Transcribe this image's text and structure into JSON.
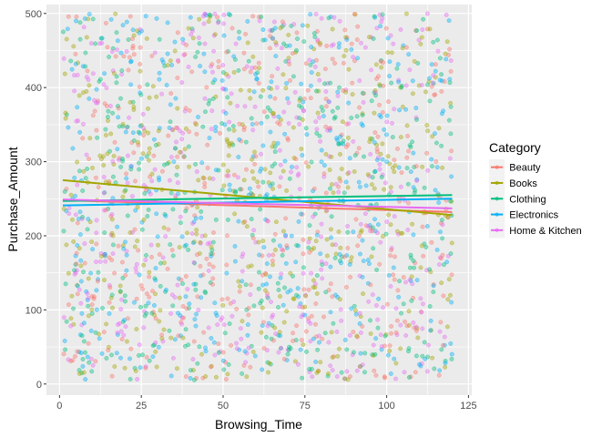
{
  "chart_data": {
    "type": "scatter",
    "xlabel": "Browsing_Time",
    "ylabel": "Purchase_Amount",
    "xlim": [
      -4,
      126
    ],
    "ylim": [
      -15,
      512
    ],
    "x_ticks": [
      0,
      25,
      50,
      75,
      100,
      125
    ],
    "y_ticks": [
      0,
      100,
      200,
      300,
      400,
      500
    ],
    "x_tick_labels": [
      "0",
      "25",
      "50",
      "75",
      "100",
      "125"
    ],
    "y_tick_labels": [
      "0",
      "100",
      "200",
      "300",
      "400",
      "500"
    ],
    "grid": true,
    "legend": {
      "title": "Category",
      "placement": "right",
      "entries": [
        "Beauty",
        "Books",
        "Clothing",
        "Electronics",
        "Home & Kitchen"
      ]
    },
    "series": [
      {
        "name": "Beauty",
        "color": "#F8766D",
        "trend": {
          "x": [
            1,
            120
          ],
          "y": [
            248,
            232
          ]
        }
      },
      {
        "name": "Books",
        "color": "#A3A500",
        "trend": {
          "x": [
            1,
            120
          ],
          "y": [
            275,
            228
          ]
        }
      },
      {
        "name": "Clothing",
        "color": "#00BF7D",
        "trend": {
          "x": [
            1,
            120
          ],
          "y": [
            247,
            255
          ]
        }
      },
      {
        "name": "Electronics",
        "color": "#00B0F6",
        "trend": {
          "x": [
            1,
            120
          ],
          "y": [
            241,
            250
          ]
        }
      },
      {
        "name": "Home & Kitchen",
        "color": "#E76BF3",
        "trend": {
          "x": [
            1,
            120
          ],
          "y": [
            249,
            237
          ]
        }
      }
    ],
    "points_per_series": 400,
    "x_range": [
      1,
      120
    ],
    "y_range": [
      5,
      500
    ]
  }
}
